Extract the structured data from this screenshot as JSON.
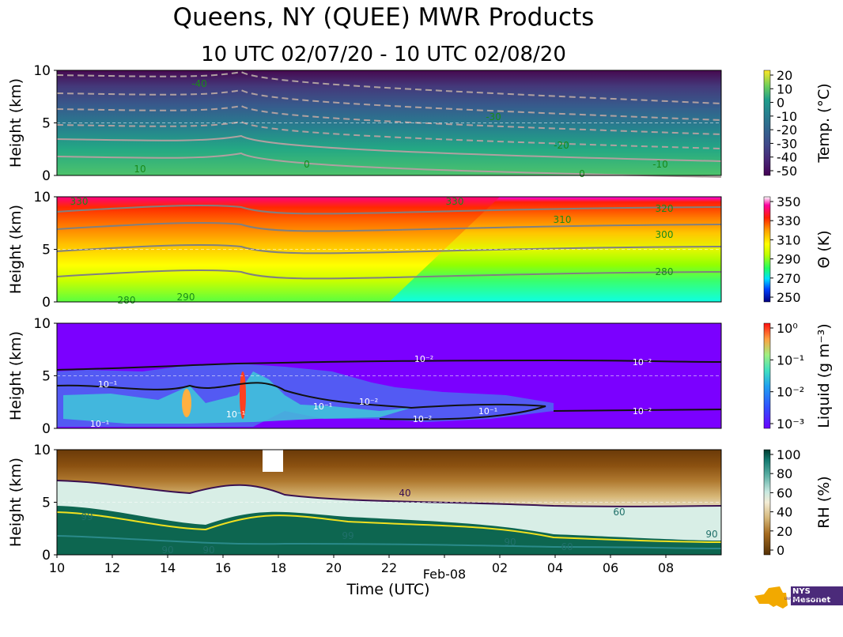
{
  "figure": {
    "title": "Queens, NY (QUEE) MWR Products",
    "subtitle": "10 UTC 02/07/20 - 10 UTC 02/08/20",
    "logo_text": "NYS Mesonet",
    "logo_subtext": "UNIVERSITY AT ALBANY"
  },
  "chart_data": [
    {
      "type": "heatmap",
      "ylabel": "Height (km)",
      "ylim": [
        0,
        10
      ],
      "yticks": [
        "0",
        "5",
        "10"
      ],
      "x_range_hours": [
        10,
        34
      ],
      "colorbar": {
        "label": "Temp. (°C)",
        "ticks": [
          "20",
          "10",
          "0",
          "-10",
          "-20",
          "-30",
          "-40",
          "-50"
        ],
        "range": [
          -50,
          20
        ]
      },
      "contour_labels": [
        "-40",
        "-30",
        "-20",
        "-10",
        "0",
        "10",
        "0"
      ]
    },
    {
      "type": "heatmap",
      "ylabel": "Height (km)",
      "ylim": [
        0,
        10
      ],
      "yticks": [
        "0",
        "5",
        "10"
      ],
      "x_range_hours": [
        10,
        34
      ],
      "colorbar": {
        "label": "Θ (K)",
        "ticks": [
          "350",
          "330",
          "310",
          "290",
          "270",
          "250"
        ],
        "range": [
          250,
          360
        ]
      },
      "contour_labels": [
        "330",
        "330",
        "310",
        "320",
        "300",
        "280",
        "290",
        "280"
      ]
    },
    {
      "type": "heatmap",
      "ylabel": "Height (km)",
      "ylim": [
        0,
        10
      ],
      "yticks": [
        "0",
        "5",
        "10"
      ],
      "x_range_hours": [
        10,
        34
      ],
      "colorbar": {
        "label": "Liquid (g m⁻³)",
        "ticks": [
          "10⁰",
          "10⁻¹",
          "10⁻²",
          "10⁻³"
        ],
        "scale": "log",
        "range": [
          0.001,
          1
        ]
      },
      "contour_labels": [
        "10⁻²",
        "10⁻²",
        "10⁻¹",
        "10⁻¹",
        "10⁻²",
        "10⁻²",
        "10⁻¹",
        "10⁻²",
        "10⁻¹",
        "10⁻¹"
      ]
    },
    {
      "type": "heatmap",
      "ylabel": "Height (km)",
      "ylim": [
        0,
        10
      ],
      "yticks": [
        "0",
        "5",
        "10"
      ],
      "x_range_hours": [
        10,
        34
      ],
      "xlabel": "Time (UTC)",
      "xticks": [
        "10",
        "12",
        "14",
        "16",
        "18",
        "20",
        "22",
        "02",
        "04",
        "06",
        "08"
      ],
      "date_label": "Feb-08",
      "colorbar": {
        "label": "RH (%)",
        "ticks": [
          "100",
          "80",
          "60",
          "40",
          "20",
          "0"
        ],
        "range": [
          0,
          105
        ]
      },
      "contour_labels": [
        "40",
        "99",
        "99",
        "60",
        "60",
        "90",
        "90",
        "90",
        "90"
      ]
    }
  ]
}
